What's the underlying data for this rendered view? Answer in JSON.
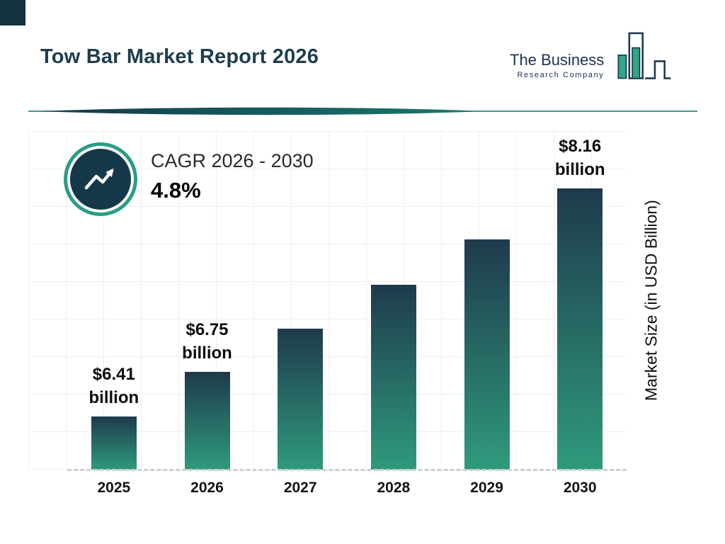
{
  "page": {
    "title": "Tow Bar Market Report 2026"
  },
  "logo": {
    "line1": "The Business",
    "line2": "Research Company"
  },
  "cagr": {
    "label": "CAGR 2026 - 2030",
    "value": "4.8%"
  },
  "colors": {
    "navy": "#14384a",
    "teal": "#2f9a7c",
    "divider": "#1c7a6d"
  },
  "chart_data": {
    "type": "bar",
    "title": "Tow Bar Market Report 2026",
    "categories": [
      "2025",
      "2026",
      "2027",
      "2028",
      "2029",
      "2030"
    ],
    "values": [
      6.41,
      6.75,
      7.08,
      7.42,
      7.77,
      8.16
    ],
    "labels": [
      {
        "amount": "$6.41",
        "unit": "billion"
      },
      {
        "amount": "$6.75",
        "unit": "billion"
      },
      null,
      null,
      null,
      {
        "amount": "$8.16",
        "unit": "billion"
      }
    ],
    "xlabel": "",
    "ylabel": "Market Size (in USD Billion)",
    "ylim": [
      6.0,
      8.6
    ],
    "grid": true,
    "legend": false,
    "bar_color_top": "#1e3a4c",
    "bar_color_bottom": "#2f9a7c"
  }
}
